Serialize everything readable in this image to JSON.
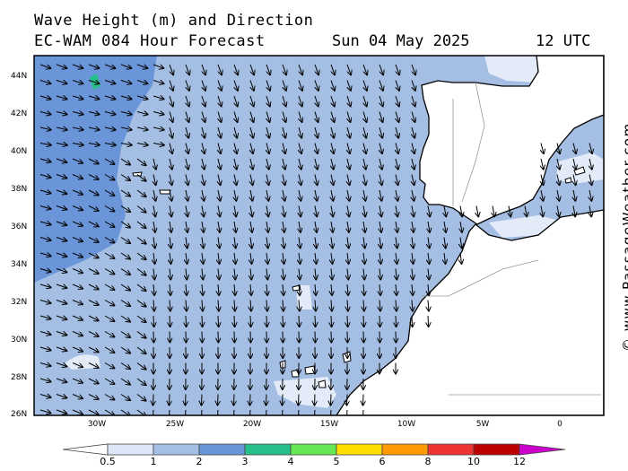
{
  "header": {
    "title": "Wave Height (m) and Direction",
    "model": "EC-WAM 084 Hour Forecast",
    "date": "Sun 04 May 2025",
    "time": "12 UTC"
  },
  "credit": "© www.PassageWeather.com",
  "map": {
    "lat_labels": [
      "44N",
      "42N",
      "40N",
      "38N",
      "36N",
      "34N",
      "32N",
      "30N",
      "28N",
      "26N"
    ],
    "lon_labels": [
      "30W",
      "25W",
      "20W",
      "15W",
      "10W",
      "5W",
      "0"
    ],
    "arrow_direction": "mostly southward, southeast in the western part",
    "colors": {
      "land": "#ffffff",
      "sea_0_5_1": "#e3ebf8",
      "sea_1_2": "#a5bfe4",
      "sea_2_3": "#6a95d8",
      "sea_3_4": "#26c08a"
    }
  },
  "colorbar": {
    "labels": [
      "0.5",
      "1",
      "2",
      "3",
      "4",
      "5",
      "6",
      "8",
      "10",
      "12"
    ],
    "colors": [
      "#ffffff",
      "#dde6f7",
      "#a5bfe4",
      "#6a95d8",
      "#26c08a",
      "#66e855",
      "#ffdd00",
      "#ff9a00",
      "#ee3333",
      "#bb0000",
      "#cc00cc"
    ]
  }
}
